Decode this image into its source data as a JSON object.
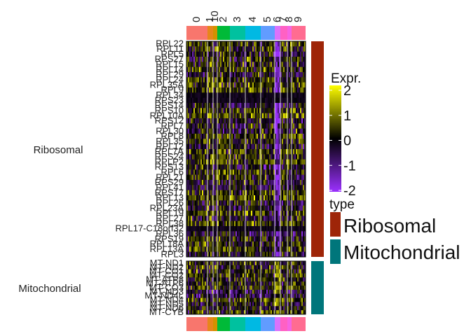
{
  "chart_data": {
    "type": "heatmap",
    "cluster_labels": [
      "0",
      "1",
      "10",
      "2",
      "3",
      "4",
      "5",
      "6",
      "7",
      "8",
      "9"
    ],
    "cluster_colors": [
      "#F8766D",
      "#E7861B",
      "#D39200",
      "#00BA38",
      "#00C19F",
      "#00B9E3",
      "#619CFF",
      "#DB72FB",
      "#FF61C3",
      "#F564E3",
      "#FF6C91"
    ],
    "groups": [
      {
        "name": "Ribosomal",
        "color": "#9E2508",
        "rows": [
          "RPL22",
          "RPL11",
          "RPL5",
          "RPS27",
          "RPL15",
          "RPL14",
          "RPL29",
          "RPL24",
          "RPL35A",
          "RPL9",
          "RPL34",
          "RPS23",
          "RPS14",
          "RPS10",
          "RPL10A",
          "RPS12",
          "RPL7",
          "RPL30",
          "RPL8",
          "RPL35",
          "RPL12",
          "RPL7A",
          "RPS24",
          "RPLP2",
          "RPS13",
          "RPL6",
          "RPL21",
          "RPS29",
          "RPL41",
          "RPS17",
          "RPL13",
          "RPL26",
          "RPL23A",
          "RPL19",
          "RPL27",
          "RPL38",
          "RPL17-C18orf32",
          "RPL36",
          "RPS19",
          "RPL18A",
          "RPL13A",
          "RPL3"
        ]
      },
      {
        "name": "Mitochondrial",
        "color": "#00767B",
        "rows": [
          "MT-ND1",
          "MT-ND2",
          "MT-CO1",
          "MT-CO2",
          "MT-ATP8",
          "MT-ATP6",
          "MT-CO3",
          "MT-ND3",
          "MT-ND4L",
          "MT-ND4",
          "MT-ND5",
          "MT-ND6",
          "MT-CYB"
        ]
      }
    ],
    "color_scale": {
      "min": -2,
      "max": 2,
      "colors": [
        "#9B30FF",
        "#000000",
        "#FFFF00"
      ]
    },
    "legend": {
      "expr_title": "Expr.",
      "expr_ticks": [
        "2",
        "1",
        "0",
        "-1",
        "-2"
      ],
      "type_title": "type",
      "type_entries": [
        "Ribosomal",
        "Mitochondrial"
      ]
    }
  }
}
